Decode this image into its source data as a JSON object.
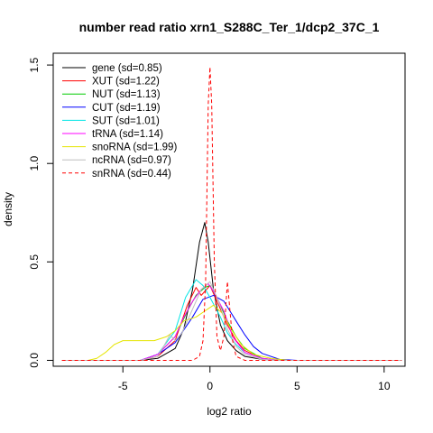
{
  "chart_data": {
    "type": "line",
    "title": "number read ratio xrn1_S288C_Ter_1/dcp2_37C_1",
    "xlabel": "log2 ratio",
    "ylabel": "density",
    "xlim": [
      -9,
      11.2
    ],
    "ylim": [
      -0.03,
      1.56
    ],
    "xticks": [
      -5,
      0,
      5,
      10
    ],
    "yticks": [
      0.0,
      0.5,
      1.0,
      1.5
    ],
    "xtick_labels": [
      "-5",
      "0",
      "5",
      "10"
    ],
    "ytick_labels": [
      "0.0",
      "0.5",
      "1.0",
      "1.5"
    ],
    "grid": false,
    "legend_position": "top-left",
    "series": [
      {
        "name": "gene (sd=0.85)",
        "color": "#000000",
        "dash": false,
        "points": [
          [
            -8.5,
            0
          ],
          [
            -4,
            0
          ],
          [
            -3,
            0.01
          ],
          [
            -2,
            0.06
          ],
          [
            -1.5,
            0.16
          ],
          [
            -1,
            0.36
          ],
          [
            -0.6,
            0.6
          ],
          [
            -0.3,
            0.7
          ],
          [
            -0.1,
            0.6
          ],
          [
            0.2,
            0.36
          ],
          [
            0.6,
            0.18
          ],
          [
            1,
            0.1
          ],
          [
            1.5,
            0.05
          ],
          [
            2,
            0.02
          ],
          [
            3,
            0.005
          ],
          [
            4,
            0
          ],
          [
            11,
            0
          ]
        ]
      },
      {
        "name": "XUT (sd=1.22)",
        "color": "#ff0000",
        "dash": false,
        "points": [
          [
            -8.5,
            0
          ],
          [
            -4,
            0
          ],
          [
            -3,
            0.02
          ],
          [
            -2,
            0.1
          ],
          [
            -1.3,
            0.28
          ],
          [
            -0.8,
            0.37
          ],
          [
            -0.5,
            0.33
          ],
          [
            -0.2,
            0.36
          ],
          [
            0,
            0.38
          ],
          [
            0.4,
            0.3
          ],
          [
            1,
            0.18
          ],
          [
            1.5,
            0.1
          ],
          [
            2,
            0.05
          ],
          [
            3,
            0.01
          ],
          [
            4,
            0
          ],
          [
            11,
            0
          ]
        ]
      },
      {
        "name": "NUT (sd=1.13)",
        "color": "#00cc00",
        "dash": false,
        "points": [
          [
            -8.5,
            0
          ],
          [
            -4,
            0
          ],
          [
            -3,
            0.03
          ],
          [
            -2,
            0.12
          ],
          [
            -1.3,
            0.25
          ],
          [
            -0.8,
            0.33
          ],
          [
            -0.3,
            0.37
          ],
          [
            0,
            0.38
          ],
          [
            0.5,
            0.3
          ],
          [
            1,
            0.2
          ],
          [
            1.5,
            0.12
          ],
          [
            2,
            0.06
          ],
          [
            3,
            0.01
          ],
          [
            4,
            0
          ],
          [
            11,
            0
          ]
        ]
      },
      {
        "name": "CUT (sd=1.19)",
        "color": "#0000ff",
        "dash": false,
        "points": [
          [
            -8.5,
            0
          ],
          [
            -4,
            0
          ],
          [
            -3,
            0.03
          ],
          [
            -2,
            0.09
          ],
          [
            -1,
            0.22
          ],
          [
            -0.4,
            0.31
          ],
          [
            0.2,
            0.33
          ],
          [
            0.8,
            0.3
          ],
          [
            1.5,
            0.2
          ],
          [
            2,
            0.13
          ],
          [
            2.5,
            0.07
          ],
          [
            3,
            0.035
          ],
          [
            4,
            0.005
          ],
          [
            5,
            0
          ],
          [
            11,
            0
          ]
        ]
      },
      {
        "name": "SUT (sd=1.01)",
        "color": "#00e5e5",
        "dash": false,
        "points": [
          [
            -8.5,
            0
          ],
          [
            -4,
            0
          ],
          [
            -3,
            0.03
          ],
          [
            -2,
            0.15
          ],
          [
            -1.4,
            0.32
          ],
          [
            -0.8,
            0.41
          ],
          [
            -0.4,
            0.38
          ],
          [
            0,
            0.32
          ],
          [
            0.6,
            0.22
          ],
          [
            1,
            0.14
          ],
          [
            1.5,
            0.08
          ],
          [
            2,
            0.04
          ],
          [
            3,
            0.01
          ],
          [
            4,
            0
          ],
          [
            11,
            0
          ]
        ]
      },
      {
        "name": "tRNA (sd=1.14)",
        "color": "#ff00ff",
        "dash": false,
        "points": [
          [
            -8.5,
            0
          ],
          [
            -4,
            0
          ],
          [
            -3,
            0.03
          ],
          [
            -2,
            0.12
          ],
          [
            -1.5,
            0.22
          ],
          [
            -1,
            0.3
          ],
          [
            -0.5,
            0.36
          ],
          [
            -0.1,
            0.39
          ],
          [
            0.2,
            0.35
          ],
          [
            0.8,
            0.25
          ],
          [
            1.3,
            0.12
          ],
          [
            2,
            0.04
          ],
          [
            3,
            0.01
          ],
          [
            4,
            0
          ],
          [
            11,
            0
          ]
        ]
      },
      {
        "name": "snoRNA (sd=1.99)",
        "color": "#e5e500",
        "dash": false,
        "points": [
          [
            -8.5,
            0
          ],
          [
            -7,
            0
          ],
          [
            -6.5,
            0.01
          ],
          [
            -6,
            0.04
          ],
          [
            -5.5,
            0.08
          ],
          [
            -5,
            0.1
          ],
          [
            -4,
            0.1
          ],
          [
            -3.2,
            0.1
          ],
          [
            -2.5,
            0.12
          ],
          [
            -2,
            0.15
          ],
          [
            -1.5,
            0.2
          ],
          [
            -0.8,
            0.22
          ],
          [
            -0.3,
            0.25
          ],
          [
            0.2,
            0.28
          ],
          [
            0.7,
            0.24
          ],
          [
            1.2,
            0.16
          ],
          [
            1.8,
            0.08
          ],
          [
            2.5,
            0.03
          ],
          [
            3.5,
            0.01
          ],
          [
            4.5,
            0
          ],
          [
            11,
            0
          ]
        ]
      },
      {
        "name": "ncRNA (sd=0.97)",
        "color": "#bebebe",
        "dash": false,
        "points": [
          [
            -8.5,
            0
          ],
          [
            -4,
            0
          ],
          [
            -3,
            0.02
          ],
          [
            -2.6,
            0.08
          ],
          [
            -2.3,
            0.13
          ],
          [
            -2,
            0.1
          ],
          [
            -1.6,
            0.14
          ],
          [
            -1,
            0.26
          ],
          [
            -0.5,
            0.36
          ],
          [
            0,
            0.4
          ],
          [
            0.5,
            0.3
          ],
          [
            1,
            0.16
          ],
          [
            1.5,
            0.07
          ],
          [
            2,
            0.03
          ],
          [
            3,
            0.005
          ],
          [
            4,
            0
          ],
          [
            11,
            0
          ]
        ]
      },
      {
        "name": "snRNA (sd=0.44)",
        "color": "#ff0000",
        "dash": true,
        "points": [
          [
            -8.5,
            0
          ],
          [
            -1,
            0
          ],
          [
            -0.6,
            0.02
          ],
          [
            -0.4,
            0.1
          ],
          [
            -0.25,
            0.4
          ],
          [
            -0.1,
            1.3
          ],
          [
            0,
            1.49
          ],
          [
            0.1,
            1.3
          ],
          [
            0.25,
            0.5
          ],
          [
            0.4,
            0.12
          ],
          [
            0.6,
            0.05
          ],
          [
            0.8,
            0.12
          ],
          [
            1,
            0.4
          ],
          [
            1.1,
            0.3
          ],
          [
            1.3,
            0.1
          ],
          [
            1.5,
            0.02
          ],
          [
            2,
            0
          ],
          [
            11,
            0
          ]
        ]
      }
    ]
  }
}
